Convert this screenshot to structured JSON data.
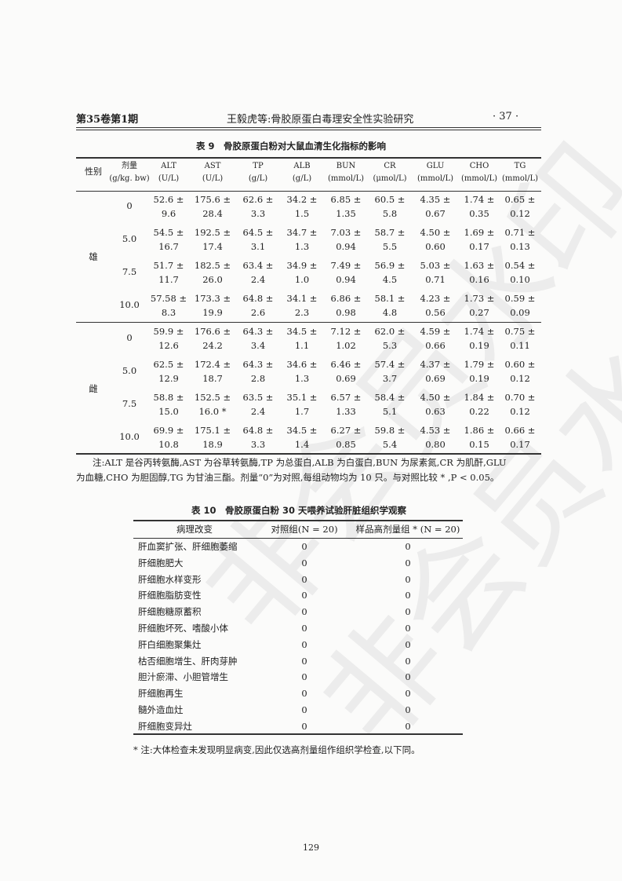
{
  "header": {
    "left": "第35卷第1期",
    "center": "王毅虎等:骨胶原蛋白毒理安全性实验研究",
    "right": "· 37 ·"
  },
  "table9": {
    "title": "表 9　骨胶原蛋白粉对大鼠血清生化指标的影响",
    "columns": [
      {
        "name": "性别",
        "unit": ""
      },
      {
        "name": "剂量",
        "unit": "(g/kg. bw)"
      },
      {
        "name": "ALT",
        "unit": "(U/L)"
      },
      {
        "name": "AST",
        "unit": "(U/L)"
      },
      {
        "name": "TP",
        "unit": "(g/L)"
      },
      {
        "name": "ALB",
        "unit": "(g/L)"
      },
      {
        "name": "BUN",
        "unit": "(mmol/L)"
      },
      {
        "name": "CR",
        "unit": "(μmol/L)"
      },
      {
        "name": "GLU",
        "unit": "(mmol/L)"
      },
      {
        "name": "CHO",
        "unit": "(mmol/L)"
      },
      {
        "name": "TG",
        "unit": "(mmol/L)"
      }
    ],
    "groups": [
      {
        "sex": "雄",
        "rows": [
          {
            "dose": "0",
            "values": [
              [
                "52.6 ±",
                "9.6"
              ],
              [
                "175.6 ±",
                "28.4"
              ],
              [
                "62.6 ±",
                "3.3"
              ],
              [
                "34.2 ±",
                "1.5"
              ],
              [
                "6.85 ±",
                "1.35"
              ],
              [
                "60.5 ±",
                "5.8"
              ],
              [
                "4.35 ±",
                "0.67"
              ],
              [
                "1.74 ±",
                "0.35"
              ],
              [
                "0.65 ±",
                "0.12"
              ]
            ]
          },
          {
            "dose": "5.0",
            "values": [
              [
                "54.5 ±",
                "16.7"
              ],
              [
                "192.5 ±",
                "17.4"
              ],
              [
                "64.5 ±",
                "3.1"
              ],
              [
                "34.7 ±",
                "1.3"
              ],
              [
                "7.03 ±",
                "0.94"
              ],
              [
                "58.7 ±",
                "5.5"
              ],
              [
                "4.50 ±",
                "0.60"
              ],
              [
                "1.69 ±",
                "0.17"
              ],
              [
                "0.71 ±",
                "0.13"
              ]
            ]
          },
          {
            "dose": "7.5",
            "values": [
              [
                "51.7 ±",
                "11.7"
              ],
              [
                "182.5 ±",
                "26.0"
              ],
              [
                "63.4 ±",
                "2.4"
              ],
              [
                "34.9 ±",
                "1.0"
              ],
              [
                "7.49 ±",
                "0.94"
              ],
              [
                "56.9 ±",
                "4.5"
              ],
              [
                "5.03 ±",
                "0.71"
              ],
              [
                "1.63 ±",
                "0.16"
              ],
              [
                "0.54 ±",
                "0.10"
              ]
            ]
          },
          {
            "dose": "10.0",
            "values": [
              [
                "57.58 ±",
                "8.3"
              ],
              [
                "173.3 ±",
                "19.9"
              ],
              [
                "64.8 ±",
                "2.6"
              ],
              [
                "34.1 ±",
                "2.3"
              ],
              [
                "6.86 ±",
                "0.98"
              ],
              [
                "58.1 ±",
                "4.8"
              ],
              [
                "4.23 ±",
                "0.56"
              ],
              [
                "1.73 ±",
                "0.27"
              ],
              [
                "0.59 ±",
                "0.09"
              ]
            ]
          }
        ]
      },
      {
        "sex": "雌",
        "rows": [
          {
            "dose": "0",
            "values": [
              [
                "59.9 ±",
                "12.6"
              ],
              [
                "176.6 ±",
                "24.2"
              ],
              [
                "64.3 ±",
                "3.4"
              ],
              [
                "34.5 ±",
                "1.1"
              ],
              [
                "7.12 ±",
                "1.02"
              ],
              [
                "62.0 ±",
                "5.3"
              ],
              [
                "4.59 ±",
                "0.66"
              ],
              [
                "1.74 ±",
                "0.19"
              ],
              [
                "0.75 ±",
                "0.11"
              ]
            ]
          },
          {
            "dose": "5.0",
            "values": [
              [
                "62.5 ±",
                "12.9"
              ],
              [
                "172.4 ±",
                "18.7"
              ],
              [
                "64.3 ±",
                "2.8"
              ],
              [
                "34.6 ±",
                "1.3"
              ],
              [
                "6.46 ±",
                "0.69"
              ],
              [
                "57.4 ±",
                "3.7"
              ],
              [
                "4.37 ±",
                "0.69"
              ],
              [
                "1.79 ±",
                "0.19"
              ],
              [
                "0.60 ±",
                "0.12"
              ]
            ]
          },
          {
            "dose": "7.5",
            "values": [
              [
                "58.8 ±",
                "15.0"
              ],
              [
                "152.5 ±",
                "16.0 *"
              ],
              [
                "63.5 ±",
                "2.4"
              ],
              [
                "35.1 ±",
                "1.7"
              ],
              [
                "6.57 ±",
                "1.33"
              ],
              [
                "58.4 ±",
                "5.1"
              ],
              [
                "4.50 ±",
                "0.63"
              ],
              [
                "1.84 ±",
                "0.22"
              ],
              [
                "0.70 ±",
                "0.12"
              ]
            ]
          },
          {
            "dose": "10.0",
            "values": [
              [
                "69.9 ±",
                "10.8"
              ],
              [
                "175.1 ±",
                "18.9"
              ],
              [
                "64.8 ±",
                "3.3"
              ],
              [
                "34.5 ±",
                "1.4"
              ],
              [
                "6.27 ±",
                "0.85"
              ],
              [
                "59.8 ±",
                "5.4"
              ],
              [
                "4.53 ±",
                "0.80"
              ],
              [
                "1.86 ±",
                "0.15"
              ],
              [
                "0.66 ±",
                "0.17"
              ]
            ]
          }
        ]
      }
    ],
    "note_line1": "注:ALT 是谷丙转氨酶,AST 为谷草转氨酶,TP 为总蛋白,ALB 为白蛋白,BUN 为尿素氮,CR 为肌酐,GLU",
    "note_line2": "为血糖,CHO 为胆固醇,TG 为甘油三酯。剂量“0”为对照,每组动物均为 10 只。与对照比较 * ,P < 0.05。"
  },
  "table10": {
    "title": "表 10　骨胶原蛋白粉 30 天喂养试验肝脏组织学观察",
    "columns": [
      "病理改变",
      "对照组(N = 20)",
      "样品高剂量组 * (N = 20)"
    ],
    "rows": [
      [
        "肝血窦扩张、肝细胞萎缩",
        "0",
        "0"
      ],
      [
        "肝细胞肥大",
        "0",
        "0"
      ],
      [
        "肝细胞水样变形",
        "0",
        "0"
      ],
      [
        "肝细胞脂肪变性",
        "0",
        "0"
      ],
      [
        "肝细胞糖原蓄积",
        "0",
        "0"
      ],
      [
        "肝细胞坏死、嗜酸小体",
        "0",
        "0"
      ],
      [
        "肝白细胞聚集灶",
        "0",
        "0"
      ],
      [
        "枯否细胞增生、肝肉芽肿",
        "0",
        "0"
      ],
      [
        "胆汁瘀滞、小胆管增生",
        "0",
        "0"
      ],
      [
        "肝细胞再生",
        "0",
        "0"
      ],
      [
        "髓外造血灶",
        "0",
        "0"
      ],
      [
        "肝细胞变异灶",
        "0",
        "0"
      ]
    ],
    "note": "* 注:大体检查未发现明显病变,因此仅选高剂量组作组织学检查,以下同。"
  },
  "page_number": "129",
  "watermark": "非会员水印"
}
